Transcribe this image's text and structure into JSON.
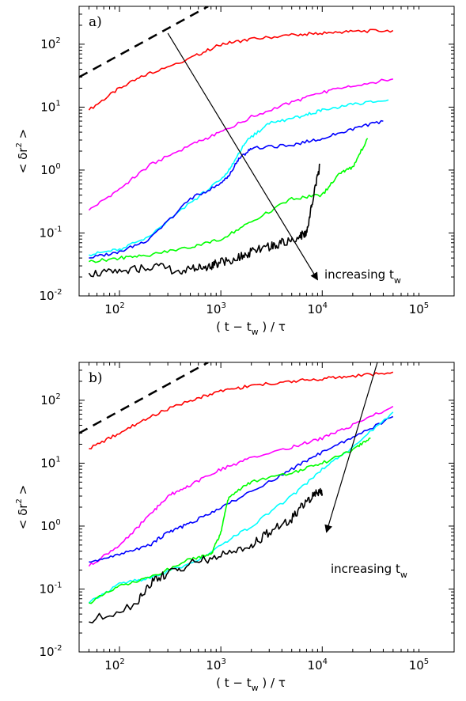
{
  "chart_data": [
    {
      "type": "line",
      "panel_label": "a)",
      "xlabel": "( t − t_w ) / τ",
      "ylabel": "< δr^2 >",
      "xscale": "log",
      "yscale": "log",
      "xlim": [
        40,
        200000
      ],
      "ylim": [
        0.01,
        400
      ],
      "x_ticks": [
        {
          "base": "10",
          "exp": "2"
        },
        {
          "base": "10",
          "exp": "3"
        },
        {
          "base": "10",
          "exp": "4"
        },
        {
          "base": "10",
          "exp": "5"
        }
      ],
      "y_ticks": [
        {
          "base": "10",
          "exp": "-2"
        },
        {
          "base": "10",
          "exp": "-1"
        },
        {
          "base": "10",
          "exp": "0"
        },
        {
          "base": "10",
          "exp": "1"
        },
        {
          "base": "10",
          "exp": "2"
        }
      ],
      "annotation": {
        "text": "increasing t",
        "sub": "w"
      },
      "arrow": {
        "from": [
          300,
          150
        ],
        "to": [
          9000,
          0.018
        ]
      },
      "reference_line": {
        "style": "dashed",
        "x": [
          40,
          750
        ],
        "y": [
          30,
          400
        ]
      },
      "series": [
        {
          "color": "#ff0000",
          "x": [
            50,
            100,
            200,
            500,
            1000,
            2000,
            5000,
            10000,
            20000,
            50000
          ],
          "y": [
            9,
            20,
            35,
            60,
            100,
            120,
            140,
            150,
            160,
            165
          ]
        },
        {
          "color": "#ff00ff",
          "x": [
            50,
            100,
            200,
            500,
            1000,
            2000,
            5000,
            10000,
            20000,
            50000
          ],
          "y": [
            0.23,
            0.5,
            1.2,
            2.5,
            4,
            7,
            12,
            17,
            22,
            28
          ]
        },
        {
          "color": "#00ffff",
          "x": [
            50,
            100,
            200,
            500,
            1000,
            1300,
            1800,
            3000,
            6000,
            10000,
            20000,
            45000
          ],
          "y": [
            0.045,
            0.055,
            0.09,
            0.3,
            0.7,
            1.2,
            3,
            5.5,
            7,
            9,
            11,
            13
          ]
        },
        {
          "color": "#0000ff",
          "x": [
            50,
            100,
            200,
            500,
            1000,
            1200,
            1500,
            2000,
            5000,
            10000,
            20000,
            40000
          ],
          "y": [
            0.04,
            0.05,
            0.08,
            0.35,
            0.6,
            0.8,
            1.5,
            2.2,
            2.5,
            3.2,
            4.5,
            6
          ]
        },
        {
          "color": "#00ff00",
          "x": [
            50,
            100,
            200,
            500,
            1000,
            2000,
            5000,
            10000,
            15000,
            20000,
            28000
          ],
          "y": [
            0.035,
            0.04,
            0.045,
            0.06,
            0.08,
            0.15,
            0.35,
            0.4,
            0.9,
            1.1,
            3.2
          ]
        },
        {
          "color": "#000000",
          "x": [
            50,
            100,
            200,
            400,
            600,
            800,
            1000,
            1500,
            2000,
            3000,
            4000,
            6000,
            7000,
            8000,
            9500
          ],
          "y": [
            0.023,
            0.023,
            0.03,
            0.025,
            0.028,
            0.03,
            0.035,
            0.04,
            0.05,
            0.06,
            0.07,
            0.09,
            0.1,
            0.3,
            1.2
          ]
        }
      ]
    },
    {
      "type": "line",
      "panel_label": "b)",
      "xlabel": "( t − t_w ) / τ",
      "ylabel": "< δr^2 >",
      "xscale": "log",
      "yscale": "log",
      "xlim": [
        40,
        200000
      ],
      "ylim": [
        0.01,
        400
      ],
      "x_ticks": [
        {
          "base": "10",
          "exp": "2"
        },
        {
          "base": "10",
          "exp": "3"
        },
        {
          "base": "10",
          "exp": "4"
        },
        {
          "base": "10",
          "exp": "5"
        }
      ],
      "y_ticks": [
        {
          "base": "10",
          "exp": "-2"
        },
        {
          "base": "10",
          "exp": "-1"
        },
        {
          "base": "10",
          "exp": "0"
        },
        {
          "base": "10",
          "exp": "1"
        },
        {
          "base": "10",
          "exp": "2"
        }
      ],
      "annotation": {
        "text": "increasing t",
        "sub": "w"
      },
      "arrow": {
        "from": [
          35000,
          400
        ],
        "to": [
          11000,
          0.8
        ]
      },
      "reference_line": {
        "style": "dashed",
        "x": [
          40,
          750
        ],
        "y": [
          30,
          400
        ]
      },
      "series": [
        {
          "color": "#ff0000",
          "x": [
            50,
            100,
            200,
            500,
            1000,
            2000,
            5000,
            10000,
            20000,
            50000
          ],
          "y": [
            17,
            30,
            55,
            100,
            140,
            170,
            200,
            220,
            240,
            280
          ]
        },
        {
          "color": "#ff00ff",
          "x": [
            50,
            100,
            200,
            300,
            500,
            1000,
            2000,
            5000,
            10000,
            20000,
            50000
          ],
          "y": [
            0.23,
            0.5,
            1.5,
            3,
            4.5,
            8,
            12,
            18,
            25,
            40,
            80
          ]
        },
        {
          "color": "#0000ff",
          "x": [
            50,
            100,
            200,
            300,
            500,
            1000,
            2000,
            5000,
            10000,
            20000,
            50000
          ],
          "y": [
            0.27,
            0.35,
            0.5,
            0.8,
            1.1,
            2,
            3.5,
            8,
            15,
            25,
            55
          ]
        },
        {
          "color": "#00ffff",
          "x": [
            50,
            100,
            200,
            500,
            1000,
            2000,
            5000,
            10000,
            20000,
            50000
          ],
          "y": [
            0.06,
            0.12,
            0.15,
            0.25,
            0.5,
            1,
            3,
            8,
            18,
            65
          ]
        },
        {
          "color": "#00ff00",
          "x": [
            50,
            100,
            200,
            500,
            800,
            1000,
            1200,
            2000,
            5000,
            10000,
            20000,
            30000
          ],
          "y": [
            0.06,
            0.11,
            0.15,
            0.3,
            0.35,
            0.8,
            3,
            5,
            7,
            10,
            16,
            25
          ]
        },
        {
          "color": "#000000",
          "x": [
            50,
            150,
            200,
            300,
            500,
            1000,
            2000,
            3000,
            5000,
            7000,
            9000,
            10000
          ],
          "y": [
            0.03,
            0.06,
            0.12,
            0.18,
            0.25,
            0.35,
            0.5,
            0.8,
            1.3,
            2.5,
            3.5,
            3.3
          ]
        }
      ]
    }
  ]
}
